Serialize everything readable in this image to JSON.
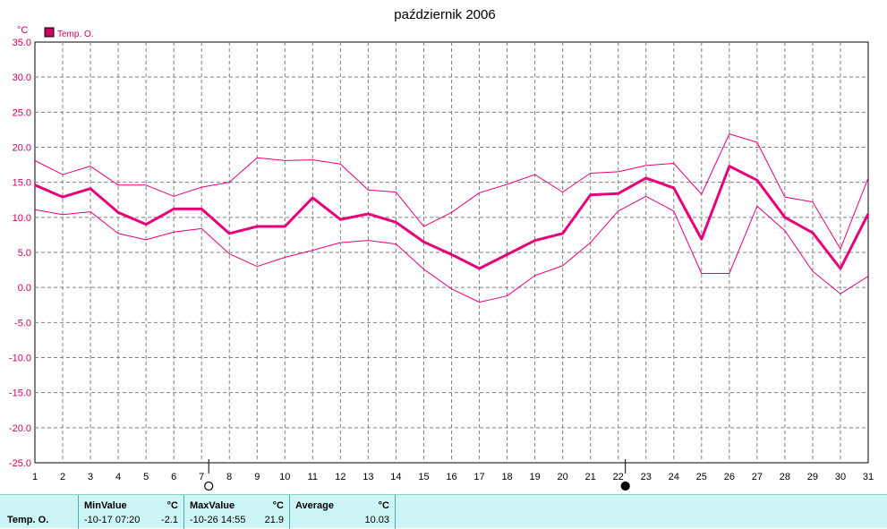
{
  "chart_data": {
    "type": "line",
    "title": "październik 2006",
    "ylabel": "°C",
    "x": [
      1,
      2,
      3,
      4,
      5,
      6,
      7,
      8,
      9,
      10,
      11,
      12,
      13,
      14,
      15,
      16,
      17,
      18,
      19,
      20,
      21,
      22,
      23,
      24,
      25,
      26,
      27,
      28,
      29,
      30,
      31
    ],
    "ylim": [
      -25,
      35
    ],
    "yticks": [
      "35.0",
      "30.0",
      "25.0",
      "20.0",
      "15.0",
      "10.0",
      "5.0",
      "0.0",
      "-5.0",
      "-10.0",
      "-15.0",
      "-20.0",
      "-25.0"
    ],
    "grid": true,
    "legend": "top-left",
    "series": [
      {
        "name": "Temp. O.",
        "role": "avg",
        "values": [
          14.6,
          12.9,
          14.1,
          10.7,
          9.0,
          11.2,
          11.2,
          7.7,
          8.7,
          8.7,
          12.8,
          9.7,
          10.5,
          9.3,
          6.5,
          4.7,
          2.7,
          4.7,
          6.7,
          7.7,
          13.2,
          13.4,
          15.6,
          14.2,
          6.9,
          17.3,
          15.3,
          10.0,
          7.8,
          2.7,
          10.5
        ]
      },
      {
        "role": "max",
        "values": [
          18.1,
          16.1,
          17.3,
          14.6,
          14.6,
          13.0,
          14.3,
          15.0,
          18.5,
          18.1,
          18.2,
          17.6,
          13.9,
          13.6,
          8.7,
          10.7,
          13.5,
          14.7,
          16.1,
          13.6,
          16.3,
          16.5,
          17.4,
          17.7,
          13.3,
          21.9,
          20.7,
          12.9,
          12.2,
          5.5,
          15.6
        ]
      },
      {
        "role": "min",
        "values": [
          11.1,
          10.4,
          10.8,
          7.7,
          6.8,
          7.9,
          8.4,
          4.8,
          3.0,
          4.3,
          5.3,
          6.4,
          6.7,
          6.2,
          2.6,
          -0.2,
          -2.1,
          -1.2,
          1.7,
          3.1,
          6.4,
          10.9,
          13.0,
          10.9,
          2.0,
          2.0,
          11.6,
          8.1,
          2.3,
          -0.9,
          1.6
        ]
      }
    ],
    "moon_phases": [
      {
        "day": 7,
        "phase": "full"
      },
      {
        "day": 22,
        "phase": "new"
      }
    ],
    "colors": {
      "avg": "#e6007a",
      "minmax": "#e6007a",
      "grid": "#808080",
      "axis_labels": "#cc0066"
    }
  },
  "stats": {
    "row_label": "Temp. O.",
    "min": {
      "label": "MinValue",
      "unit": "°C",
      "time": "-10-17  07:20",
      "value": "-2.1"
    },
    "max": {
      "label": "MaxValue",
      "unit": "°C",
      "time": "-10-26  14:55",
      "value": "21.9"
    },
    "avg": {
      "label": "Average",
      "unit": "°C",
      "value": "10.03"
    }
  }
}
